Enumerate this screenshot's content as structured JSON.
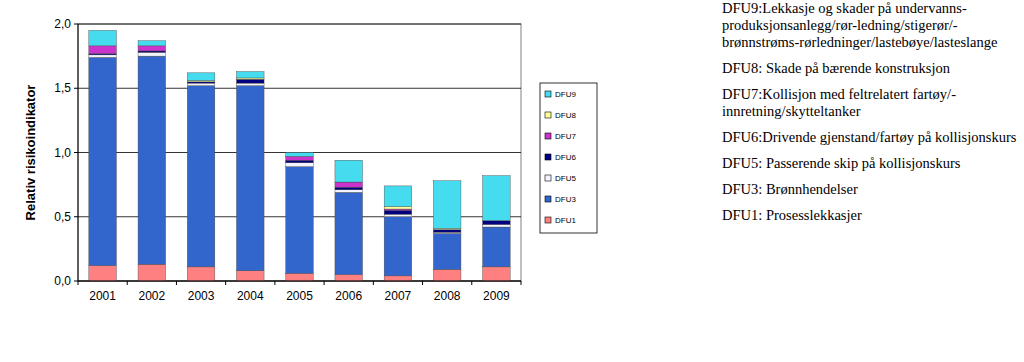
{
  "chart_data": {
    "type": "bar",
    "stacked": true,
    "y_label": "Relativ risikoindikator",
    "categories": [
      "2001",
      "2002",
      "2003",
      "2004",
      "2005",
      "2006",
      "2007",
      "2008",
      "2009"
    ],
    "ylim": [
      0,
      2
    ],
    "yticks": [
      {
        "value": 0,
        "label": "0,0"
      },
      {
        "value": 0.5,
        "label": "0,5"
      },
      {
        "value": 1,
        "label": "1,0"
      },
      {
        "value": 1.5,
        "label": "1,5"
      },
      {
        "value": 2,
        "label": "2,0"
      }
    ],
    "grid": true,
    "legend": "right",
    "series": [
      {
        "name": "DFU1",
        "color": "#ff8080",
        "values": [
          0.12,
          0.13,
          0.11,
          0.08,
          0.06,
          0.05,
          0.04,
          0.09,
          0.11
        ]
      },
      {
        "name": "DFU3",
        "color": "#3366cc",
        "values": [
          1.62,
          1.62,
          1.41,
          1.44,
          0.83,
          0.64,
          0.46,
          0.28,
          0.31
        ]
      },
      {
        "name": "DFU5",
        "color": "#f4f4ff",
        "values": [
          0.02,
          0.03,
          0.02,
          0.02,
          0.03,
          0.02,
          0.02,
          0.01,
          0.02
        ]
      },
      {
        "name": "DFU6",
        "color": "#000080",
        "values": [
          0.01,
          0.01,
          0.01,
          0.03,
          0.02,
          0.02,
          0.03,
          0.02,
          0.03
        ]
      },
      {
        "name": "DFU7",
        "color": "#cc33cc",
        "values": [
          0.06,
          0.04,
          0.0,
          0.0,
          0.03,
          0.04,
          0.01,
          0.0,
          0.0
        ]
      },
      {
        "name": "DFU8",
        "color": "#ffff99",
        "values": [
          0.0,
          0.0,
          0.01,
          0.01,
          0.0,
          0.0,
          0.02,
          0.01,
          0.0
        ]
      },
      {
        "name": "DFU9",
        "color": "#44dcee",
        "values": [
          0.12,
          0.04,
          0.06,
          0.05,
          0.03,
          0.17,
          0.16,
          0.37,
          0.35
        ]
      }
    ],
    "annotations": [
      "DFU9:Lekkasje og skader på undervanns-produksjonsanlegg/rør-ledning/stigerør/-brønnstrøms-rørledninger/lastebøye/lasteslange",
      "DFU8: Skade på bærende konstruksjon",
      "DFU7:Kollisjon med feltrelatert fartøy/-innretning/skytteltanker",
      "DFU6:Drivende gjenstand/fartøy på kollisjonskurs",
      "DFU5: Passerende skip på kollisjonskurs",
      "DFU3: Brønnhendelser",
      "DFU1: Prosesslekkasjer"
    ]
  }
}
